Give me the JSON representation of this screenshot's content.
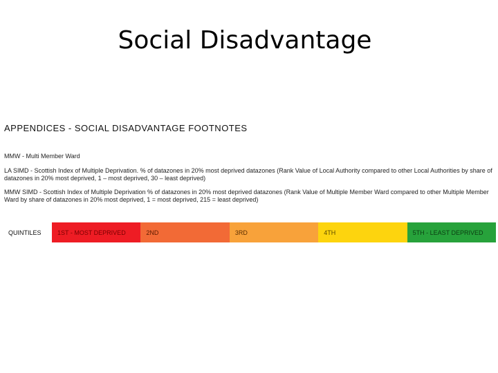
{
  "slide": {
    "title": "Social Disadvantage"
  },
  "appendix": {
    "heading": "APPENDICES - SOCIAL DISADVANTAGE FOOTNOTES",
    "footnotes": [
      "MMW - Multi Member Ward",
      "LA SIMD - Scottish Index of Multiple Deprivation. % of datazones in 20% most deprived datazones (Rank Value of Local Authority compared to other Local Authorities by share of datazones in 20% most deprived, 1 – most deprived, 30 – least deprived)",
      "MMW SIMD - Scottish Index of Multiple Deprivation % of datazones in 20% most deprived datazones (Rank Value of Multiple Member Ward compared to other Multiple Member Ward by share of datazones in 20% most deprived, 1 = most deprived, 215 = least deprived)"
    ]
  },
  "quintiles": {
    "label": "QUINTILES",
    "items": [
      {
        "text": "1ST - MOST DEPRIVED",
        "color": "#ee1c24",
        "text_color": "#7a0000"
      },
      {
        "text": "2ND",
        "color": "#f26a36",
        "text_color": "#5a1a00"
      },
      {
        "text": "3RD",
        "color": "#f8a23a",
        "text_color": "#5a2e00"
      },
      {
        "text": "4TH",
        "color": "#fdd40e",
        "text_color": "#5a4a00"
      },
      {
        "text": "5TH - LEAST DEPRIVED",
        "color": "#27a23b",
        "text_color": "#0b3d12"
      }
    ]
  }
}
